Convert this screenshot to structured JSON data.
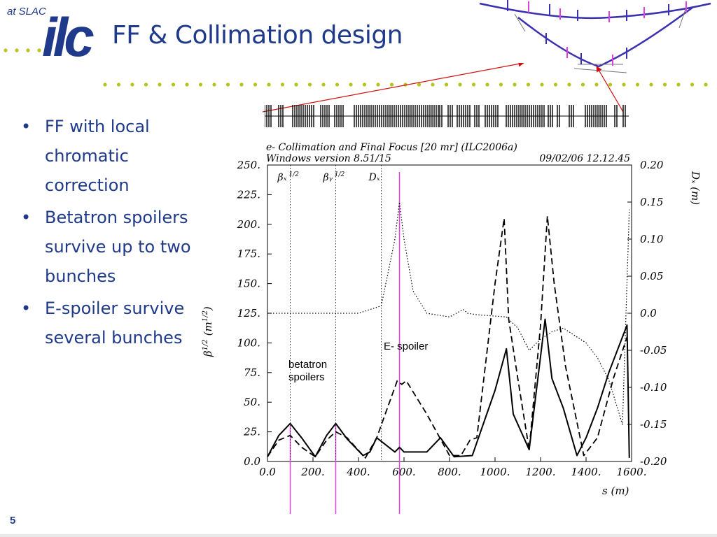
{
  "header": {
    "org": "at SLAC",
    "logo_text": "ilc",
    "title": "FF & Collimation design"
  },
  "bullets": [
    "FF with local chromatic correction",
    "Betatron spoilers survive up to two bunches",
    "E-spoiler survive several bunches"
  ],
  "page_number": "5",
  "colors": {
    "title": "#1f3a8a",
    "dot_green": "#b5c41a",
    "arrow": "#d01010",
    "marker": "#e040e0",
    "beamline": "#3a30b0"
  },
  "chart_data": {
    "type": "line",
    "header_line1": "e- Collimation and Final Focus [20 mr] (ILC2006a)",
    "header_line2": "Windows version 8.51/15",
    "header_date": "09/02/06  12.12.45",
    "xlabel": "s (m)",
    "ylabel_left": "β^{1/2}  (m^{1/2})",
    "ylabel_left_base": "β",
    "ylabel_left_sup": "1/2",
    "ylabel_left_unit": "(m",
    "ylabel_left_unit_sup": "1/2",
    "ylabel_left_close": ")",
    "ylabel_right": "Dₓ (m)",
    "xlim": [
      0,
      1600
    ],
    "ylim_left": [
      0,
      250
    ],
    "ylim_right": [
      -0.2,
      0.2
    ],
    "xticks": [
      "0.0",
      "200.",
      "400.",
      "600.",
      "800.",
      "1000.",
      "1200.",
      "1400.",
      "1600."
    ],
    "yticks_left": [
      "0.0",
      "25.",
      "50.",
      "75.",
      "100.",
      "125.",
      "150.",
      "175.",
      "200.",
      "225.",
      "250."
    ],
    "yticks_right": [
      "-0.20",
      "-0.15",
      "-0.10",
      "-0.05",
      "0.0",
      "0.05",
      "0.10",
      "0.15",
      "0.20"
    ],
    "legend": [
      {
        "label": "βₓ",
        "sup": "1/2",
        "style": "solid",
        "x": 100
      },
      {
        "label": "βᵧ",
        "sup": "1/2",
        "style": "dashed",
        "x": 300
      },
      {
        "label": "Dₓ",
        "sup": "",
        "style": "dotted",
        "x": 500
      }
    ],
    "series": [
      {
        "name": "βₓ^{1/2}",
        "style": "solid",
        "axis": "left",
        "x": [
          0,
          50,
          100,
          150,
          210,
          260,
          300,
          350,
          420,
          450,
          480,
          560,
          580,
          600,
          700,
          760,
          820,
          900,
          1000,
          1050,
          1080,
          1150,
          1220,
          1250,
          1300,
          1360,
          1400,
          1450,
          1500,
          1580,
          1590
        ],
        "y": [
          4,
          22,
          32,
          20,
          4,
          22,
          32,
          19,
          5,
          8,
          20,
          8,
          12,
          8,
          8,
          20,
          4,
          5,
          60,
          95,
          40,
          10,
          120,
          70,
          45,
          5,
          20,
          45,
          75,
          115,
          3
        ]
      },
      {
        "name": "βᵧ^{1/2}",
        "style": "dashed",
        "axis": "left",
        "x": [
          0,
          50,
          100,
          150,
          210,
          260,
          300,
          350,
          430,
          480,
          570,
          590,
          610,
          700,
          800,
          850,
          890,
          920,
          1000,
          1040,
          1060,
          1100,
          1150,
          1200,
          1230,
          1260,
          1310,
          1390,
          1450,
          1520,
          1580
        ],
        "y": [
          4,
          18,
          22,
          12,
          4,
          18,
          25,
          20,
          3,
          20,
          68,
          65,
          68,
          40,
          5,
          5,
          18,
          20,
          150,
          205,
          120,
          70,
          10,
          115,
          207,
          150,
          80,
          5,
          20,
          70,
          105
        ]
      },
      {
        "name": "Dₓ",
        "style": "dotted",
        "axis": "right",
        "x": [
          0,
          400,
          500,
          560,
          580,
          600,
          640,
          700,
          800,
          860,
          880,
          920,
          1050,
          1100,
          1150,
          1200,
          1250,
          1300,
          1350,
          1400,
          1450,
          1500,
          1560,
          1590
        ],
        "y": [
          0.0,
          0.0,
          0.01,
          0.1,
          0.15,
          0.1,
          0.03,
          0.0,
          -0.005,
          0.005,
          0.0,
          -0.002,
          -0.005,
          -0.02,
          -0.05,
          -0.035,
          -0.025,
          -0.02,
          -0.03,
          -0.04,
          -0.06,
          -0.09,
          -0.15,
          0.14
        ]
      }
    ],
    "markers": [
      100,
      300,
      580
    ],
    "annotations": [
      {
        "label": "E- spoiler"
      },
      {
        "label_line1": "betatron",
        "label_line2": "spoilers"
      }
    ]
  }
}
